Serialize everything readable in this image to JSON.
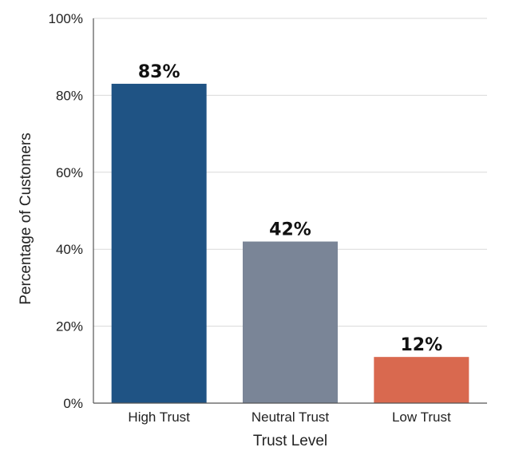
{
  "chart_data": {
    "type": "bar",
    "categories": [
      "High Trust",
      "Neutral Trust",
      "Low Trust"
    ],
    "values": [
      83,
      42,
      12
    ],
    "data_labels": [
      "83%",
      "42%",
      "12%"
    ],
    "colors": [
      "#1f5384",
      "#7a8597",
      "#d9694f"
    ],
    "xlabel": "Trust Level",
    "ylabel": "Percentage of Customers",
    "ylim": [
      0,
      100
    ],
    "yticks": [
      0,
      20,
      40,
      60,
      80,
      100
    ],
    "ytick_labels": [
      "0%",
      "20%",
      "40%",
      "60%",
      "80%",
      "100%"
    ],
    "grid": true,
    "legend": "none"
  }
}
